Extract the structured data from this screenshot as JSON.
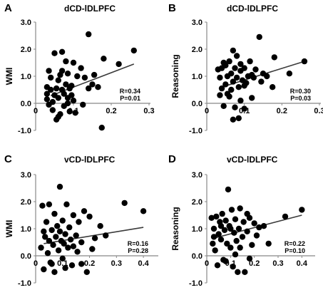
{
  "chart_data": [
    {
      "type": "scatter",
      "panel_label": "A",
      "title": "dCD-lDLPFC",
      "xlabel": "",
      "ylabel": "WMI",
      "xlim": [
        0,
        0.3
      ],
      "ylim": [
        -1.0,
        3.0
      ],
      "xticks": [
        0,
        0.1,
        0.2,
        0.3
      ],
      "xtick_labels": [
        "0",
        "0.1",
        "0.2",
        "0.3"
      ],
      "yticks": [
        -1.0,
        0.0,
        1.0,
        2.0,
        3.0
      ],
      "ytick_labels": [
        "-1.0",
        "0.0",
        "1.0",
        "2.0",
        "3.0"
      ],
      "annotation": [
        "R=0.34",
        "P=0.01"
      ],
      "trendline": [
        [
          0.04,
          0.28
        ],
        [
          0.26,
          1.45
        ]
      ],
      "points": [
        [
          0.03,
          0.35
        ],
        [
          0.03,
          0.15
        ],
        [
          0.035,
          -0.05
        ],
        [
          0.04,
          0.5
        ],
        [
          0.04,
          0.95
        ],
        [
          0.045,
          -0.25
        ],
        [
          0.05,
          0.3
        ],
        [
          0.05,
          1.85
        ],
        [
          0.055,
          -0.6
        ],
        [
          0.055,
          0.55
        ],
        [
          0.06,
          0.2
        ],
        [
          0.06,
          0.85
        ],
        [
          0.065,
          1.05
        ],
        [
          0.065,
          -0.4
        ],
        [
          0.07,
          1.9
        ],
        [
          0.07,
          0.5
        ],
        [
          0.075,
          0.35
        ],
        [
          0.075,
          -0.1
        ],
        [
          0.08,
          1.55
        ],
        [
          0.08,
          0.7
        ],
        [
          0.085,
          0.2
        ],
        [
          0.085,
          1.1
        ],
        [
          0.09,
          -0.3
        ],
        [
          0.09,
          0.55
        ],
        [
          0.095,
          0.65
        ],
        [
          0.1,
          1.5
        ],
        [
          0.1,
          0.1
        ],
        [
          0.105,
          -0.35
        ],
        [
          0.11,
          1.0
        ],
        [
          0.12,
          1.3
        ],
        [
          0.125,
          -0.05
        ],
        [
          0.13,
          0.95
        ],
        [
          0.14,
          2.55
        ],
        [
          0.14,
          0.55
        ],
        [
          0.15,
          0.7
        ],
        [
          0.155,
          1.05
        ],
        [
          0.165,
          0.6
        ],
        [
          0.175,
          -0.9
        ],
        [
          0.18,
          1.65
        ],
        [
          0.22,
          1.45
        ],
        [
          0.26,
          1.95
        ],
        [
          0.03,
          0.6
        ],
        [
          0.035,
          1.2
        ],
        [
          0.045,
          0.05
        ],
        [
          0.06,
          -0.5
        ],
        [
          0.07,
          1.2
        ],
        [
          0.085,
          0.0
        ],
        [
          0.095,
          0.3
        ]
      ]
    },
    {
      "type": "scatter",
      "panel_label": "B",
      "title": "dCD-lDLPFC",
      "xlabel": "",
      "ylabel": "Reasoning",
      "xlim": [
        0,
        0.3
      ],
      "ylim": [
        -1.0,
        3.0
      ],
      "xticks": [
        0,
        0.1,
        0.2,
        0.3
      ],
      "xtick_labels": [
        "0",
        "0.1",
        "0.2",
        "0.3"
      ],
      "yticks": [
        -1.0,
        0.0,
        1.0,
        2.0,
        3.0
      ],
      "ytick_labels": [
        "-1.0",
        "0.0",
        "1.0",
        "2.0",
        "3.0"
      ],
      "annotation": [
        "R=0.30",
        "P=0.03"
      ],
      "trendline": [
        [
          0.04,
          0.6
        ],
        [
          0.26,
          1.55
        ]
      ],
      "points": [
        [
          0.03,
          1.25
        ],
        [
          0.035,
          0.3
        ],
        [
          0.04,
          1.3
        ],
        [
          0.04,
          0.55
        ],
        [
          0.045,
          -0.1
        ],
        [
          0.05,
          1.4
        ],
        [
          0.05,
          0.7
        ],
        [
          0.055,
          1.0
        ],
        [
          0.06,
          0.25
        ],
        [
          0.06,
          1.55
        ],
        [
          0.065,
          0.5
        ],
        [
          0.065,
          1.1
        ],
        [
          0.07,
          1.95
        ],
        [
          0.07,
          0.8
        ],
        [
          0.075,
          -0.15
        ],
        [
          0.075,
          1.3
        ],
        [
          0.08,
          0.95
        ],
        [
          0.08,
          1.75
        ],
        [
          0.085,
          -0.55
        ],
        [
          0.085,
          0.6
        ],
        [
          0.09,
          1.45
        ],
        [
          0.09,
          1.2
        ],
        [
          0.095,
          0.85
        ],
        [
          0.1,
          -0.2
        ],
        [
          0.1,
          1.3
        ],
        [
          0.105,
          0.75
        ],
        [
          0.11,
          1.0
        ],
        [
          0.115,
          1.55
        ],
        [
          0.12,
          0.2
        ],
        [
          0.125,
          0.95
        ],
        [
          0.13,
          1.25
        ],
        [
          0.14,
          2.45
        ],
        [
          0.145,
          0.8
        ],
        [
          0.15,
          1.1
        ],
        [
          0.16,
          1.0
        ],
        [
          0.175,
          0.6
        ],
        [
          0.18,
          1.7
        ],
        [
          0.22,
          1.1
        ],
        [
          0.26,
          1.55
        ],
        [
          0.035,
          0.95
        ],
        [
          0.045,
          1.5
        ],
        [
          0.055,
          0.35
        ],
        [
          0.07,
          -0.6
        ],
        [
          0.09,
          0.1
        ],
        [
          0.1,
          0.65
        ],
        [
          0.12,
          1.05
        ]
      ]
    },
    {
      "type": "scatter",
      "panel_label": "C",
      "title": "vCD-lDLPFC",
      "xlabel": "",
      "ylabel": "WMI",
      "xlim": [
        0,
        0.45
      ],
      "ylim": [
        -1.0,
        3.0
      ],
      "xticks": [
        0,
        0.1,
        0.2,
        0.3,
        0.4
      ],
      "xtick_labels": [
        "0",
        "0.1",
        "0.2",
        "0.3",
        "0.4"
      ],
      "yticks": [
        -1.0,
        0.0,
        1.0,
        2.0,
        3.0
      ],
      "ytick_labels": [
        "-1.0",
        "0.0",
        "1.0",
        "2.0",
        "3.0"
      ],
      "annotation": [
        "R=0.16",
        "P=0.28"
      ],
      "trendline": [
        [
          0.03,
          0.45
        ],
        [
          0.4,
          1.05
        ]
      ],
      "points": [
        [
          0.02,
          0.3
        ],
        [
          0.025,
          1.85
        ],
        [
          0.03,
          -0.5
        ],
        [
          0.035,
          0.7
        ],
        [
          0.04,
          1.25
        ],
        [
          0.045,
          0.1
        ],
        [
          0.05,
          0.55
        ],
        [
          0.05,
          1.9
        ],
        [
          0.055,
          -0.25
        ],
        [
          0.06,
          0.95
        ],
        [
          0.065,
          0.4
        ],
        [
          0.07,
          1.55
        ],
        [
          0.07,
          -0.6
        ],
        [
          0.075,
          0.7
        ],
        [
          0.08,
          1.1
        ],
        [
          0.085,
          0.2
        ],
        [
          0.09,
          2.55
        ],
        [
          0.095,
          0.55
        ],
        [
          0.1,
          1.3
        ],
        [
          0.1,
          -0.1
        ],
        [
          0.105,
          0.45
        ],
        [
          0.11,
          0.8
        ],
        [
          0.115,
          1.9
        ],
        [
          0.12,
          0.3
        ],
        [
          0.125,
          1.05
        ],
        [
          0.13,
          0.6
        ],
        [
          0.135,
          -0.35
        ],
        [
          0.14,
          1.5
        ],
        [
          0.15,
          0.75
        ],
        [
          0.155,
          0.15
        ],
        [
          0.16,
          1.25
        ],
        [
          0.17,
          0.5
        ],
        [
          0.18,
          1.65
        ],
        [
          0.19,
          -0.6
        ],
        [
          0.2,
          1.45
        ],
        [
          0.21,
          0.25
        ],
        [
          0.22,
          0.65
        ],
        [
          0.24,
          1.1
        ],
        [
          0.26,
          0.75
        ],
        [
          0.33,
          1.95
        ],
        [
          0.4,
          1.65
        ],
        [
          0.03,
          0.9
        ],
        [
          0.06,
          -0.3
        ],
        [
          0.09,
          0.9
        ],
        [
          0.11,
          -0.45
        ],
        [
          0.14,
          0.35
        ],
        [
          0.17,
          -0.3
        ]
      ]
    },
    {
      "type": "scatter",
      "panel_label": "D",
      "title": "vCD-lDLPFC",
      "xlabel": "",
      "ylabel": "Reasoning",
      "xlim": [
        0,
        0.45
      ],
      "ylim": [
        -1.0,
        3.0
      ],
      "xticks": [
        0,
        0.1,
        0.2,
        0.3,
        0.4
      ],
      "xtick_labels": [
        "0",
        "0.1",
        "0.2",
        "0.3",
        "0.4"
      ],
      "yticks": [
        -1.0,
        0.0,
        1.0,
        2.0,
        3.0
      ],
      "ytick_labels": [
        "-1.0",
        "0.0",
        "1.0",
        "2.0",
        "3.0"
      ],
      "annotation": [
        "R=0.22",
        "P=0.10"
      ],
      "trendline": [
        [
          0.03,
          0.65
        ],
        [
          0.4,
          1.5
        ]
      ],
      "points": [
        [
          0.02,
          1.4
        ],
        [
          0.025,
          0.45
        ],
        [
          0.03,
          1.0
        ],
        [
          0.035,
          0.2
        ],
        [
          0.04,
          1.45
        ],
        [
          0.045,
          -0.35
        ],
        [
          0.05,
          0.8
        ],
        [
          0.055,
          1.25
        ],
        [
          0.06,
          0.6
        ],
        [
          0.065,
          1.55
        ],
        [
          0.07,
          -0.15
        ],
        [
          0.075,
          0.95
        ],
        [
          0.08,
          1.3
        ],
        [
          0.085,
          0.45
        ],
        [
          0.09,
          2.45
        ],
        [
          0.095,
          1.1
        ],
        [
          0.1,
          0.3
        ],
        [
          0.105,
          1.7
        ],
        [
          0.11,
          -0.4
        ],
        [
          0.115,
          0.85
        ],
        [
          0.12,
          1.35
        ],
        [
          0.125,
          0.55
        ],
        [
          0.13,
          -0.6
        ],
        [
          0.135,
          1.0
        ],
        [
          0.14,
          1.75
        ],
        [
          0.15,
          0.7
        ],
        [
          0.155,
          1.25
        ],
        [
          0.16,
          -0.6
        ],
        [
          0.17,
          0.9
        ],
        [
          0.18,
          1.4
        ],
        [
          0.19,
          0.4
        ],
        [
          0.2,
          1.2
        ],
        [
          0.21,
          0.75
        ],
        [
          0.22,
          1.05
        ],
        [
          0.24,
          1.1
        ],
        [
          0.26,
          0.45
        ],
        [
          0.33,
          1.45
        ],
        [
          0.4,
          1.7
        ],
        [
          0.03,
          0.7
        ],
        [
          0.06,
          1.1
        ],
        [
          0.08,
          -0.2
        ],
        [
          0.1,
          1.0
        ],
        [
          0.12,
          0.05
        ],
        [
          0.14,
          0.3
        ],
        [
          0.17,
          1.55
        ],
        [
          0.18,
          -0.1
        ]
      ]
    }
  ]
}
